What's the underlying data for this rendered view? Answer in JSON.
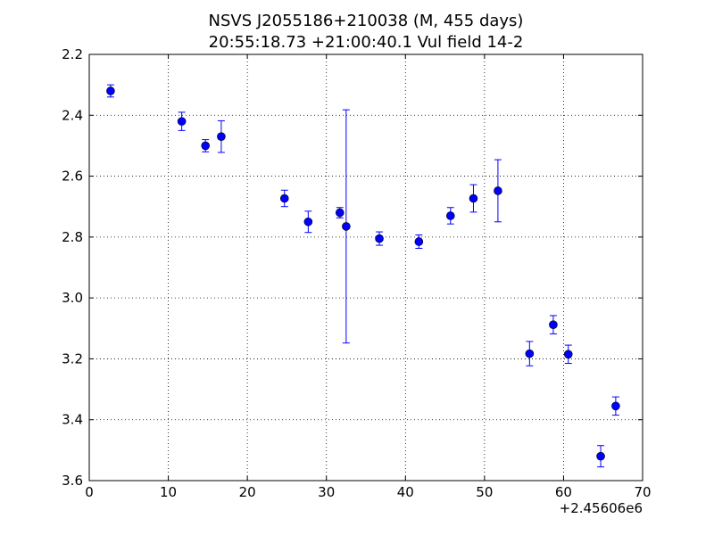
{
  "chart_data": {
    "type": "scatter",
    "title_line1": "NSVS J2055186+210038 (M, 455 days)",
    "title_line2": "20:55:18.73 +21:00:40.1 Vul field 14-2",
    "xlabel": "",
    "ylabel": "",
    "x_offset_label": "+2.45606e6",
    "xlim": [
      0,
      70
    ],
    "ylim": [
      3.6,
      2.2
    ],
    "y_inverted": true,
    "grid": true,
    "marker_color": "#0000ff",
    "x_ticks": [
      0,
      10,
      20,
      30,
      40,
      50,
      60,
      70
    ],
    "x_tick_labels": [
      "0",
      "10",
      "20",
      "30",
      "40",
      "50",
      "60",
      "70"
    ],
    "y_ticks": [
      2.2,
      2.4,
      2.6,
      2.8,
      3.0,
      3.2,
      3.4,
      3.6
    ],
    "y_tick_labels": [
      "2.2",
      "2.4",
      "2.6",
      "2.8",
      "3.0",
      "3.2",
      "3.4",
      "3.6"
    ],
    "points": [
      {
        "x": 2.7,
        "y": 2.32,
        "err": 0.02
      },
      {
        "x": 11.7,
        "y": 2.42,
        "err": 0.03
      },
      {
        "x": 14.7,
        "y": 2.5,
        "err": 0.02
      },
      {
        "x": 16.7,
        "y": 2.47,
        "err": 0.052
      },
      {
        "x": 24.7,
        "y": 2.673,
        "err": 0.027
      },
      {
        "x": 27.7,
        "y": 2.75,
        "err": 0.035
      },
      {
        "x": 31.7,
        "y": 2.72,
        "err": 0.017
      },
      {
        "x": 32.5,
        "y": 2.765,
        "err": 0.383
      },
      {
        "x": 36.7,
        "y": 2.805,
        "err": 0.022
      },
      {
        "x": 41.7,
        "y": 2.815,
        "err": 0.022
      },
      {
        "x": 45.7,
        "y": 2.73,
        "err": 0.027
      },
      {
        "x": 48.6,
        "y": 2.673,
        "err": 0.045
      },
      {
        "x": 51.7,
        "y": 2.648,
        "err": 0.102
      },
      {
        "x": 55.7,
        "y": 3.183,
        "err": 0.04
      },
      {
        "x": 58.7,
        "y": 3.088,
        "err": 0.03
      },
      {
        "x": 60.6,
        "y": 3.185,
        "err": 0.03
      },
      {
        "x": 64.7,
        "y": 3.52,
        "err": 0.035
      },
      {
        "x": 66.6,
        "y": 3.355,
        "err": 0.03
      }
    ]
  }
}
